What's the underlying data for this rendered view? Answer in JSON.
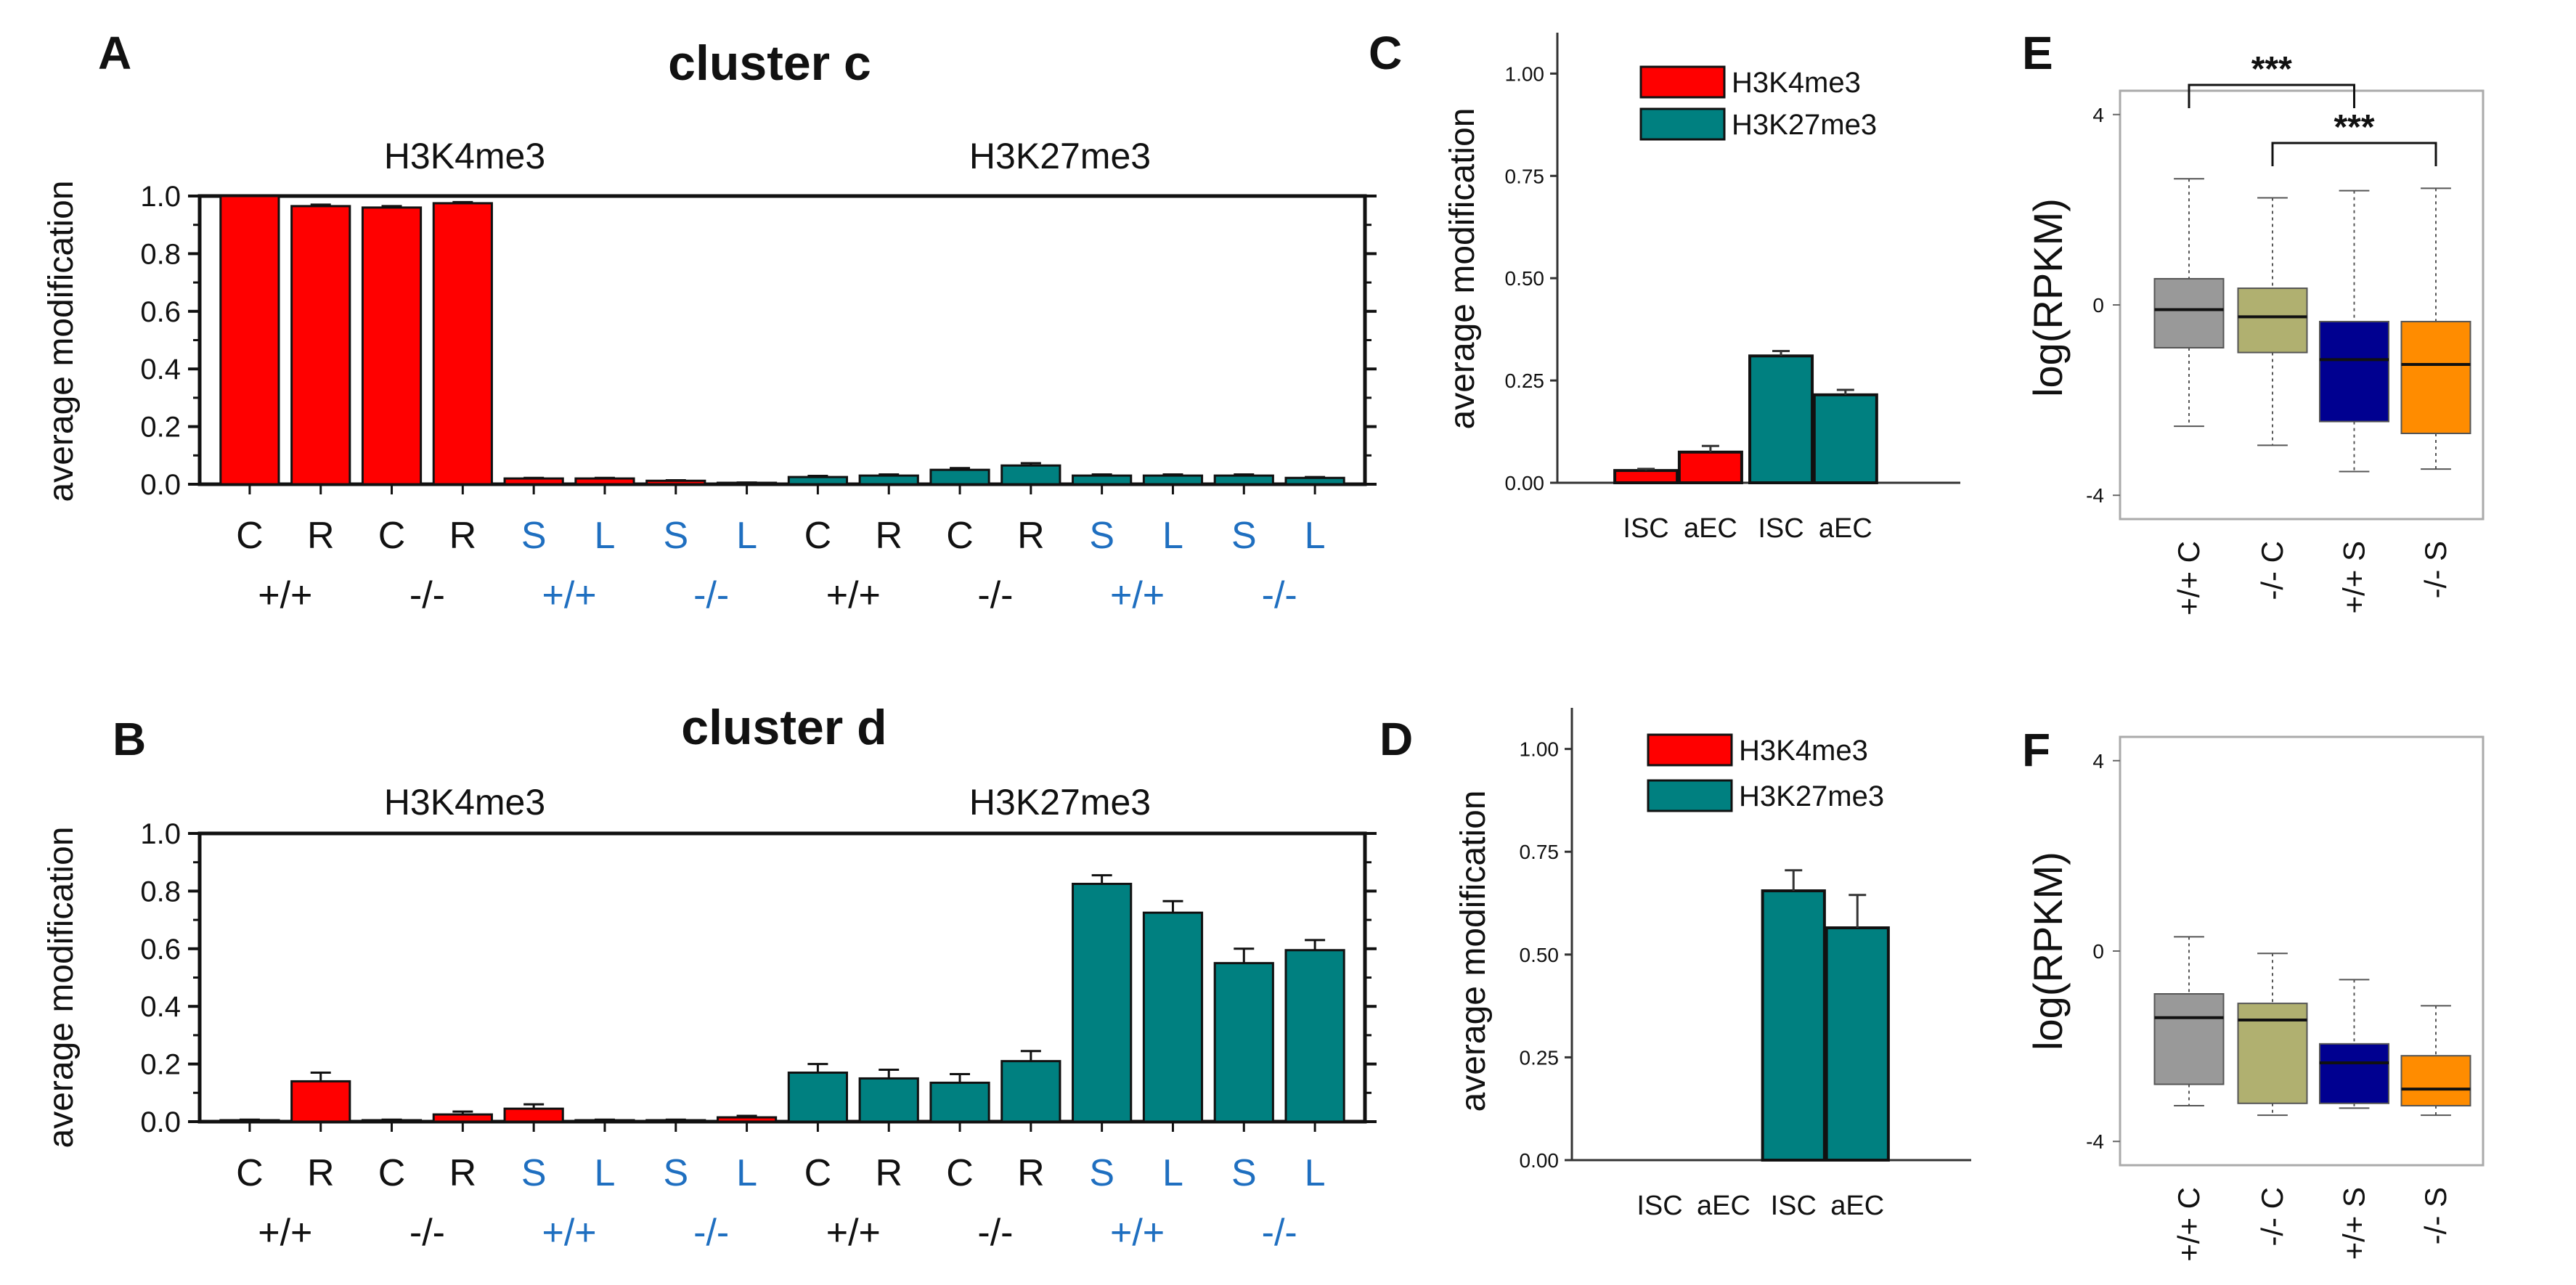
{
  "colors": {
    "red": "#ff0000",
    "teal": "#008080",
    "blue_label": "#1f6fc0",
    "gray": "#999999",
    "olive": "#b0b070",
    "navy": "#000090",
    "orange": "#ff8c00",
    "green_label": "#888800",
    "bright_blue_label": "#1a1aff"
  },
  "chart_data": [
    {
      "id": "A",
      "panel_label": "A",
      "type": "bar",
      "title": "cluster c",
      "group_labels": [
        "H3K4me3",
        "H3K27me3"
      ],
      "ylabel": "average modification",
      "ylim": [
        0,
        1.0
      ],
      "yticks": [
        "0.0",
        "0.2",
        "0.4",
        "0.6",
        "0.8",
        "1.0"
      ],
      "categories": [
        "C",
        "R",
        "C",
        "R",
        "S",
        "L",
        "S",
        "L",
        "C",
        "R",
        "C",
        "R",
        "S",
        "L",
        "S",
        "L"
      ],
      "category_colors": [
        "black",
        "black",
        "black",
        "black",
        "blue",
        "blue",
        "blue",
        "blue",
        "black",
        "black",
        "black",
        "black",
        "blue",
        "blue",
        "blue",
        "blue"
      ],
      "genotypes": [
        {
          "label": "+/+",
          "color": "black"
        },
        {
          "label": "-/-",
          "color": "black"
        },
        {
          "label": "+/+",
          "color": "blue"
        },
        {
          "label": "-/-",
          "color": "blue"
        },
        {
          "label": "+/+",
          "color": "black"
        },
        {
          "label": "-/-",
          "color": "black"
        },
        {
          "label": "+/+",
          "color": "blue"
        },
        {
          "label": "-/-",
          "color": "blue"
        }
      ],
      "values": [
        1.0,
        0.965,
        0.96,
        0.975,
        0.02,
        0.02,
        0.012,
        0.005,
        0.025,
        0.03,
        0.05,
        0.065,
        0.03,
        0.03,
        0.03,
        0.022
      ],
      "errors": [
        0.002,
        0.005,
        0.005,
        0.004,
        0.002,
        0.002,
        0.002,
        0.001,
        0.004,
        0.004,
        0.006,
        0.008,
        0.004,
        0.004,
        0.004,
        0.003
      ],
      "bar_series": [
        "H3K4me3",
        "H3K4me3",
        "H3K4me3",
        "H3K4me3",
        "H3K4me3",
        "H3K4me3",
        "H3K4me3",
        "H3K4me3",
        "H3K27me3",
        "H3K27me3",
        "H3K27me3",
        "H3K27me3",
        "H3K27me3",
        "H3K27me3",
        "H3K27me3",
        "H3K27me3"
      ]
    },
    {
      "id": "B",
      "panel_label": "B",
      "type": "bar",
      "title": "cluster d",
      "group_labels": [
        "H3K4me3",
        "H3K27me3"
      ],
      "ylabel": "average modification",
      "ylim": [
        0,
        1.0
      ],
      "yticks": [
        "0.0",
        "0.2",
        "0.4",
        "0.6",
        "0.8",
        "1.0"
      ],
      "categories": [
        "C",
        "R",
        "C",
        "R",
        "S",
        "L",
        "S",
        "L",
        "C",
        "R",
        "C",
        "R",
        "S",
        "L",
        "S",
        "L"
      ],
      "category_colors": [
        "black",
        "black",
        "black",
        "black",
        "blue",
        "blue",
        "blue",
        "blue",
        "black",
        "black",
        "black",
        "black",
        "blue",
        "blue",
        "blue",
        "blue"
      ],
      "genotypes": [
        {
          "label": "+/+",
          "color": "black"
        },
        {
          "label": "-/-",
          "color": "black"
        },
        {
          "label": "+/+",
          "color": "blue"
        },
        {
          "label": "-/-",
          "color": "blue"
        },
        {
          "label": "+/+",
          "color": "black"
        },
        {
          "label": "-/-",
          "color": "black"
        },
        {
          "label": "+/+",
          "color": "blue"
        },
        {
          "label": "-/-",
          "color": "blue"
        }
      ],
      "values": [
        0.005,
        0.14,
        0.005,
        0.025,
        0.045,
        0.005,
        0.005,
        0.015,
        0.17,
        0.15,
        0.135,
        0.21,
        0.825,
        0.725,
        0.55,
        0.595
      ],
      "errors": [
        0.002,
        0.03,
        0.002,
        0.01,
        0.015,
        0.002,
        0.002,
        0.005,
        0.03,
        0.03,
        0.03,
        0.035,
        0.03,
        0.04,
        0.05,
        0.035
      ],
      "bar_series": [
        "H3K4me3",
        "H3K4me3",
        "H3K4me3",
        "H3K4me3",
        "H3K4me3",
        "H3K4me3",
        "H3K4me3",
        "H3K4me3",
        "H3K27me3",
        "H3K27me3",
        "H3K27me3",
        "H3K27me3",
        "H3K27me3",
        "H3K27me3",
        "H3K27me3",
        "H3K27me3"
      ]
    },
    {
      "id": "C",
      "panel_label": "C",
      "type": "bar",
      "ylabel": "average modification",
      "ylim": [
        0,
        1.1
      ],
      "yticks": [
        "0.00",
        "0.25",
        "0.50",
        "0.75",
        "1.00"
      ],
      "categories": [
        "ISC",
        "aEC",
        "ISC",
        "aEC"
      ],
      "series_labels": [
        "H3K4me3",
        "H3K27me3"
      ],
      "bar_series": [
        "H3K4me3",
        "H3K4me3",
        "H3K27me3",
        "H3K27me3"
      ],
      "values": [
        0.03,
        0.075,
        0.31,
        0.215
      ],
      "errors": [
        0.004,
        0.015,
        0.012,
        0.012
      ]
    },
    {
      "id": "D",
      "panel_label": "D",
      "type": "bar",
      "ylabel": "average modification",
      "ylim": [
        0,
        1.1
      ],
      "yticks": [
        "0.00",
        "0.25",
        "0.50",
        "0.75",
        "1.00"
      ],
      "categories": [
        "ISC",
        "aEC",
        "ISC",
        "aEC"
      ],
      "series_labels": [
        "H3K4me3",
        "H3K27me3"
      ],
      "bar_series": [
        "H3K4me3",
        "H3K4me3",
        "H3K27me3",
        "H3K27me3"
      ],
      "values": [
        0.0,
        0.0,
        0.655,
        0.565
      ],
      "errors": [
        0,
        0,
        0.05,
        0.08
      ]
    },
    {
      "id": "E",
      "panel_label": "E",
      "type": "box",
      "ylabel": "log(RPKM)",
      "ylim": [
        -4.5,
        4.5
      ],
      "yticks": [
        4,
        0,
        -4
      ],
      "ytick_labels": [
        "4",
        "0",
        "-4"
      ],
      "categories": [
        "+/+ C",
        "-/- C",
        "+/+ S",
        "-/- S"
      ],
      "category_color_keys": [
        "black",
        "green_label",
        "bright_blue_label",
        "orange"
      ],
      "box_color_keys": [
        "gray",
        "olive",
        "navy",
        "orange"
      ],
      "boxes": [
        {
          "whisker_low": -2.55,
          "q1": -0.9,
          "median": -0.1,
          "q3": 0.55,
          "whisker_high": 2.65
        },
        {
          "whisker_low": -2.95,
          "q1": -1.0,
          "median": -0.25,
          "q3": 0.35,
          "whisker_high": 2.25
        },
        {
          "whisker_low": -3.5,
          "q1": -2.45,
          "median": -1.15,
          "q3": -0.35,
          "whisker_high": 2.4
        },
        {
          "whisker_low": -3.45,
          "q1": -2.7,
          "median": -1.25,
          "q3": -0.35,
          "whisker_high": 2.45
        }
      ],
      "significance": [
        {
          "from": 0,
          "to": 2,
          "label": "***"
        },
        {
          "from": 1,
          "to": 3,
          "label": "***"
        }
      ]
    },
    {
      "id": "F",
      "panel_label": "F",
      "type": "box",
      "ylabel": "log(RPKM)",
      "ylim": [
        -4.5,
        4.5
      ],
      "yticks": [
        4,
        0,
        -4
      ],
      "ytick_labels": [
        "4",
        "0",
        "-4"
      ],
      "categories": [
        "+/+ C",
        "-/- C",
        "+/+ S",
        "-/- S"
      ],
      "category_color_keys": [
        "black",
        "green_label",
        "bright_blue_label",
        "orange"
      ],
      "box_color_keys": [
        "gray",
        "olive",
        "navy",
        "orange"
      ],
      "boxes": [
        {
          "whisker_low": -3.25,
          "q1": -2.8,
          "median": -1.4,
          "q3": -0.9,
          "whisker_high": 0.3
        },
        {
          "whisker_low": -3.45,
          "q1": -3.2,
          "median": -1.45,
          "q3": -1.1,
          "whisker_high": -0.05
        },
        {
          "whisker_low": -3.3,
          "q1": -3.2,
          "median": -2.35,
          "q3": -1.95,
          "whisker_high": -0.6
        },
        {
          "whisker_low": -3.45,
          "q1": -3.25,
          "median": -2.9,
          "q3": -2.2,
          "whisker_high": -1.15
        }
      ]
    }
  ]
}
